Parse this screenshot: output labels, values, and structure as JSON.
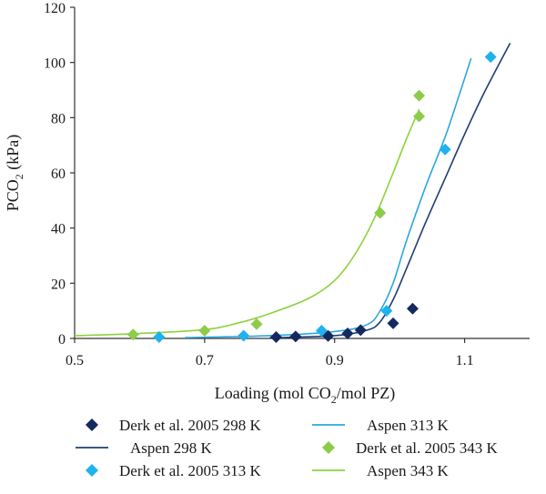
{
  "chart_data": {
    "type": "scatter",
    "xlabel": {
      "pre": "Loading (mol CO",
      "sub": "2",
      "post": "/mol PZ)"
    },
    "ylabel": {
      "pre": "PCO",
      "sub": "2",
      "post": " (kPa)"
    },
    "xlim": [
      0.5,
      1.2
    ],
    "ylim": [
      0,
      120
    ],
    "x_ticks": [
      0.5,
      0.7,
      0.9,
      1.1
    ],
    "x_tick_labels": [
      "0.5",
      "0.7",
      "0.9",
      "1.1"
    ],
    "y_ticks": [
      0,
      20,
      40,
      60,
      80,
      100,
      120
    ],
    "y_tick_labels": [
      "0",
      "20",
      "40",
      "60",
      "80",
      "100",
      "120"
    ],
    "grid": false,
    "legend_position": "bottom",
    "series": [
      {
        "name": "Derk et al. 2005 298 K",
        "kind": "points",
        "marker": "diamond",
        "color": "#14295e",
        "points": [
          [
            0.81,
            0.5
          ],
          [
            0.84,
            0.7
          ],
          [
            0.89,
            0.9
          ],
          [
            0.92,
            1.8
          ],
          [
            0.94,
            3.0
          ],
          [
            0.99,
            5.5
          ],
          [
            1.02,
            10.8
          ]
        ]
      },
      {
        "name": "Aspen 298 K",
        "kind": "line",
        "color": "#1f3d78",
        "points": [
          [
            0.8,
            0.2
          ],
          [
            0.9,
            1.0
          ],
          [
            0.95,
            3.0
          ],
          [
            0.97,
            6.0
          ],
          [
            0.99,
            14.0
          ],
          [
            1.01,
            25.0
          ],
          [
            1.04,
            42.0
          ],
          [
            1.07,
            58.0
          ],
          [
            1.1,
            74.0
          ],
          [
            1.13,
            89.0
          ],
          [
            1.17,
            107.0
          ]
        ]
      },
      {
        "name": "Derk et al. 2005 313 K",
        "kind": "points",
        "marker": "diamond",
        "color": "#1fb2ef",
        "points": [
          [
            0.63,
            0.5
          ],
          [
            0.76,
            1.0
          ],
          [
            0.88,
            2.8
          ],
          [
            0.98,
            10.0
          ],
          [
            1.07,
            68.5
          ],
          [
            1.14,
            102.0
          ]
        ]
      },
      {
        "name": "Aspen 313 K",
        "kind": "line",
        "color": "#2ba7e0",
        "points": [
          [
            0.67,
            0.3
          ],
          [
            0.8,
            1.0
          ],
          [
            0.9,
            2.5
          ],
          [
            0.95,
            5.0
          ],
          [
            0.97,
            10.0
          ],
          [
            0.99,
            20.0
          ],
          [
            1.01,
            35.0
          ],
          [
            1.04,
            55.0
          ],
          [
            1.07,
            73.0
          ],
          [
            1.09,
            87.0
          ],
          [
            1.11,
            101.5
          ]
        ]
      },
      {
        "name": "Derk et al. 2005 343 K",
        "kind": "points",
        "marker": "diamond",
        "color": "#8ccc4a",
        "points": [
          [
            0.59,
            1.4
          ],
          [
            0.7,
            2.8
          ],
          [
            0.78,
            5.2
          ],
          [
            0.97,
            45.5
          ],
          [
            1.03,
            80.5
          ],
          [
            1.03,
            88.0
          ]
        ]
      },
      {
        "name": "Aspen 343 K",
        "kind": "line",
        "color": "#8cd23c",
        "points": [
          [
            0.5,
            1.0
          ],
          [
            0.6,
            1.8
          ],
          [
            0.7,
            3.2
          ],
          [
            0.75,
            5.5
          ],
          [
            0.8,
            9.0
          ],
          [
            0.86,
            14.5
          ],
          [
            0.9,
            21.0
          ],
          [
            0.93,
            30.0
          ],
          [
            0.96,
            43.0
          ],
          [
            0.99,
            60.0
          ],
          [
            1.01,
            72.0
          ],
          [
            1.03,
            83.0
          ]
        ]
      }
    ],
    "legend_layout": [
      [
        "Derk et al. 2005 298 K",
        "Aspen 313 K"
      ],
      [
        "Aspen 298 K",
        "Derk et al. 2005 343 K"
      ],
      [
        "Derk et al. 2005 313 K",
        "Aspen 343 K"
      ]
    ]
  }
}
